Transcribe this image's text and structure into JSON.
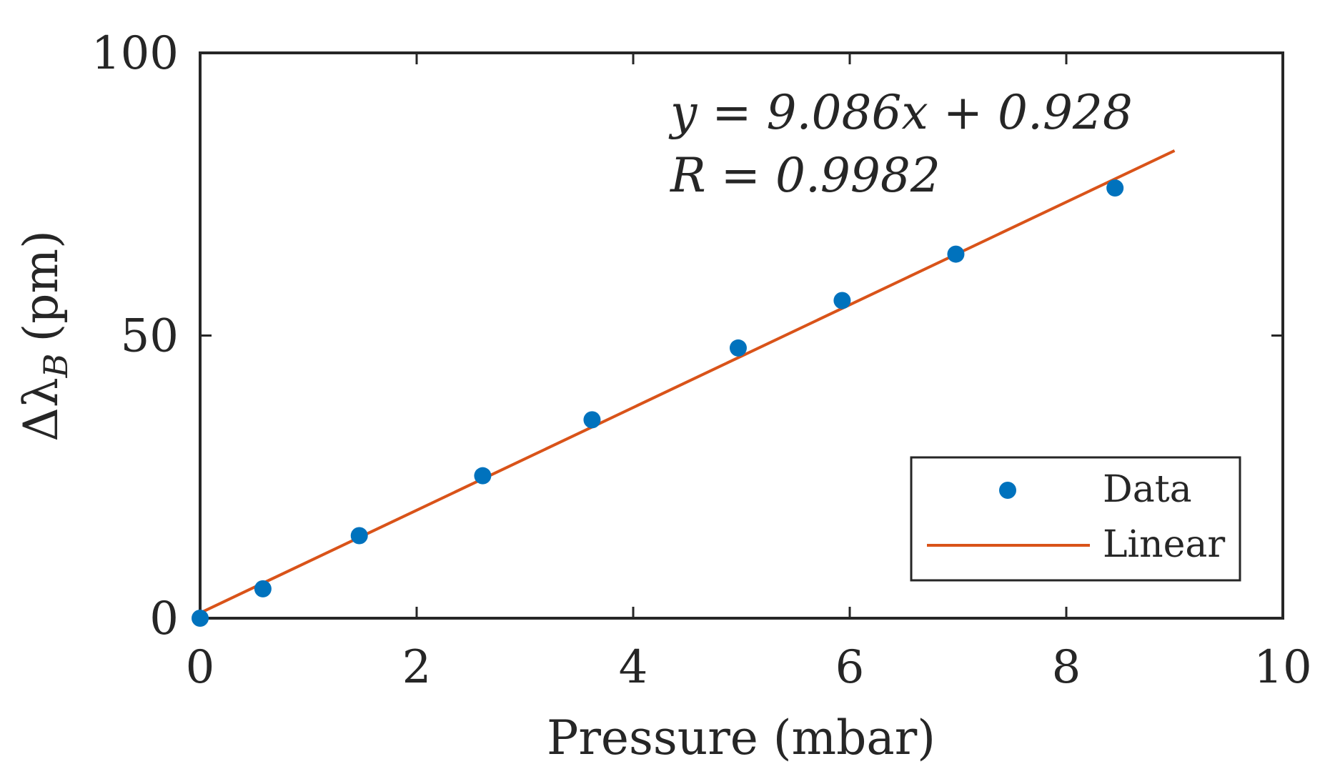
{
  "chart_data": {
    "type": "scatter",
    "title": "",
    "xlabel": "Pressure (mbar)",
    "ylabel": "Δλ",
    "ylabel_subscript": "B",
    "ylabel_unit": "(pm)",
    "xlim": [
      0,
      10
    ],
    "ylim": [
      0,
      100
    ],
    "xticks": [
      0,
      2,
      4,
      6,
      8,
      10
    ],
    "xtick_labels": [
      "0",
      "2",
      "4",
      "6",
      "8",
      "10"
    ],
    "yticks": [
      0,
      50,
      100
    ],
    "ytick_labels": [
      "0",
      "50",
      "100"
    ],
    "grid": false,
    "legend_position": "bottom-right",
    "series": [
      {
        "name": "Data",
        "type": "scatter",
        "color": "#0072BD",
        "x": [
          0,
          0.58,
          1.47,
          2.61,
          3.62,
          4.97,
          5.93,
          6.98,
          8.45
        ],
        "y": [
          0,
          5.2,
          14.6,
          25.2,
          35.1,
          47.8,
          56.2,
          64.4,
          76.1
        ]
      },
      {
        "name": "Linear",
        "type": "line",
        "color": "#D95319",
        "slope": 9.086,
        "intercept": 0.928,
        "x": [
          0,
          9
        ]
      }
    ],
    "annotations": {
      "equation": "y = 9.086x + 0.928",
      "r_value": "R = 0.9982"
    }
  }
}
